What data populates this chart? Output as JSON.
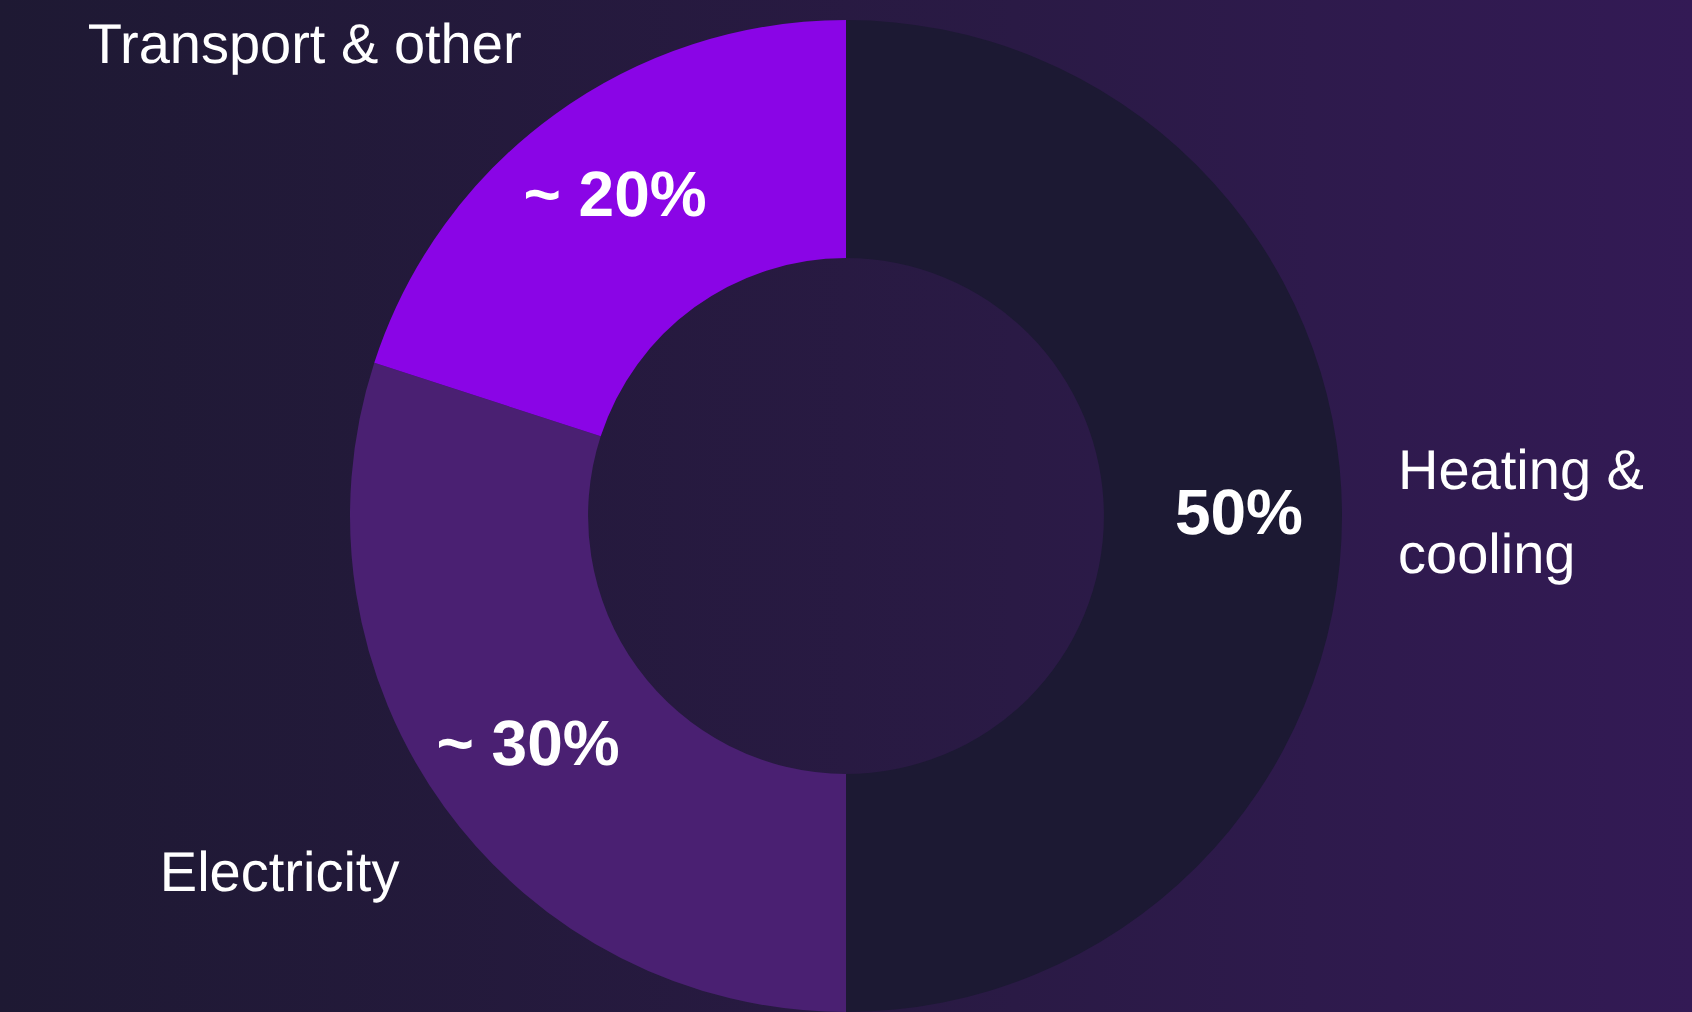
{
  "chart_data": {
    "type": "donut",
    "categories": [
      "Heating & cooling",
      "Electricity",
      "Transport & other"
    ],
    "values": [
      50,
      30,
      20
    ],
    "colors": [
      "#1c1933",
      "#4a2072",
      "#8a05e6"
    ],
    "value_labels": [
      "50%",
      "~ 30%",
      "~ 20%"
    ],
    "legend": false
  }
}
